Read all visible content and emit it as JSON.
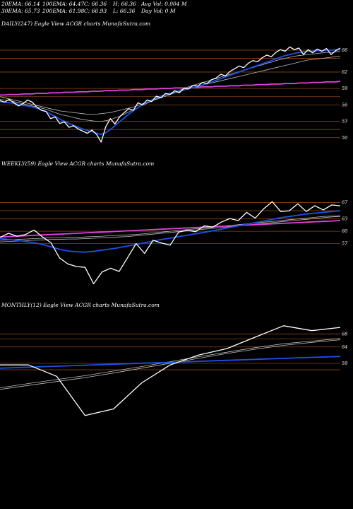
{
  "header": {
    "row1": [
      "20EMA: 66.14",
      "100EMA: 64.47",
      "C: 66.36",
      "H: 66.36",
      "Avg Vol: 0.004 M"
    ],
    "row2": [
      "30EMA: 65.73",
      "200EMA: 61.98",
      "C: 66.93",
      "L: 66.36",
      "Day Vol: 0  M"
    ]
  },
  "colors": {
    "background": "#000000",
    "price": "#ffffff",
    "ema_fast": "#1e50e6",
    "ema_slow": "#e040e0",
    "hline": "#8b4513"
  },
  "chart_data": [
    {
      "type": "line",
      "title": "DAILY(247) Eagle  View  ACGR charts MunafaSutra.com",
      "ytick_labels": [
        "66",
        "62",
        "59",
        "56",
        "53",
        "50"
      ],
      "ylim": [
        47,
        70
      ],
      "hlines": [
        66,
        64.5,
        62,
        59,
        57.5,
        56,
        53,
        51.5,
        50
      ],
      "series": [
        {
          "role": "price",
          "values": [
            56.8,
            56.5,
            57.0,
            56.4,
            55.8,
            56.2,
            56.9,
            56.5,
            55.6,
            55.0,
            54.8,
            53.5,
            53.8,
            52.6,
            52.9,
            51.9,
            52.2,
            51.6,
            51.2,
            50.8,
            51.4,
            50.6,
            49.2,
            52.0,
            53.5,
            52.5,
            53.8,
            54.6,
            55.3,
            55.0,
            56.4,
            56.0,
            56.9,
            56.6,
            57.6,
            57.3,
            58.1,
            57.9,
            58.6,
            58.2,
            59.0,
            58.9,
            59.6,
            59.4,
            60.1,
            59.9,
            60.6,
            60.9,
            61.6,
            61.3,
            62.1,
            62.6,
            63.1,
            62.8,
            63.6,
            64.1,
            63.9,
            64.6,
            65.1,
            64.8,
            65.6,
            66.1,
            65.8,
            66.6,
            66.1,
            66.4,
            65.2,
            66.1,
            65.5,
            66.2,
            65.8,
            66.3,
            65.2,
            65.9,
            66.4
          ]
        },
        {
          "role": "ema_fast",
          "values": [
            56.6,
            56.5,
            56.4,
            56.3,
            56.1,
            55.9,
            55.8,
            55.6,
            55.4,
            55.1,
            54.8,
            54.3,
            53.9,
            53.4,
            53.0,
            52.6,
            52.3,
            51.9,
            51.6,
            51.3,
            51.1,
            50.8,
            50.6,
            50.9,
            51.5,
            52.2,
            52.9,
            53.6,
            54.3,
            54.9,
            55.5,
            56.0,
            56.5,
            56.9,
            57.3,
            57.6,
            57.9,
            58.1,
            58.4,
            58.6,
            58.8,
            59.0,
            59.2,
            59.4,
            59.6,
            59.9,
            60.2,
            60.5,
            60.8,
            61.1,
            61.4,
            61.7,
            62.0,
            62.3,
            62.6,
            62.9,
            63.2,
            63.5,
            63.8,
            64.1,
            64.4,
            64.7,
            65.0,
            65.2,
            65.4,
            65.6,
            65.7,
            65.8,
            65.8,
            65.9,
            65.9,
            66.0,
            66.0,
            66.1,
            66.1
          ]
        },
        {
          "role": "ema_slow",
          "values": [
            57.8,
            57.8,
            57.9,
            57.9,
            57.9,
            58.0,
            58.0,
            58.0,
            58.1,
            58.1,
            58.1,
            58.2,
            58.2,
            58.2,
            58.3,
            58.3,
            58.3,
            58.4,
            58.4,
            58.4,
            58.5,
            58.5,
            58.5,
            58.6,
            58.6,
            58.6,
            58.7,
            58.7,
            58.7,
            58.8,
            58.8,
            58.8,
            58.9,
            58.9,
            58.9,
            59.0,
            59.0,
            59.0,
            59.1,
            59.1,
            59.1,
            59.2,
            59.2,
            59.2,
            59.3,
            59.3,
            59.3,
            59.4,
            59.4,
            59.4,
            59.5,
            59.5,
            59.5,
            59.6,
            59.6,
            59.6,
            59.7,
            59.7,
            59.7,
            59.8,
            59.8,
            59.8,
            59.9,
            59.9,
            59.9,
            60.0,
            60.0,
            60.0,
            60.1,
            60.1,
            60.1,
            60.2,
            60.2,
            60.2,
            60.3
          ]
        },
        {
          "role": "ema_mid1",
          "values": [
            57.5,
            57.3,
            57.1,
            56.9,
            56.7,
            56.5,
            56.3,
            56.1,
            55.9,
            55.7,
            55.5,
            55.3,
            55.1,
            54.9,
            54.8,
            54.7,
            54.6,
            54.5,
            54.4,
            54.3,
            54.3,
            54.3,
            54.4,
            54.5,
            54.6,
            54.8,
            55.0,
            55.2,
            55.4,
            55.6,
            55.9,
            56.2,
            56.5,
            56.8,
            57.0,
            57.3,
            57.6,
            57.9,
            58.2,
            58.4,
            58.7,
            58.9,
            59.2,
            59.4,
            59.6,
            59.8,
            60.0,
            60.2,
            60.4,
            60.6,
            60.8,
            61.0,
            61.2,
            61.4,
            61.6,
            61.8,
            62.0,
            62.2,
            62.4,
            62.6,
            62.8,
            63.0,
            63.2,
            63.4,
            63.6,
            63.8,
            64.0,
            64.2,
            64.3,
            64.4,
            64.5,
            64.6,
            64.7,
            64.8,
            64.9
          ]
        },
        {
          "role": "ema_mid2",
          "values": [
            57.0,
            56.9,
            56.8,
            56.6,
            56.4,
            56.2,
            56.0,
            55.8,
            55.6,
            55.4,
            55.2,
            54.9,
            54.6,
            54.3,
            54.1,
            53.9,
            53.7,
            53.5,
            53.3,
            53.2,
            53.1,
            53.0,
            53.0,
            53.1,
            53.3,
            53.6,
            53.9,
            54.3,
            54.7,
            55.1,
            55.5,
            55.9,
            56.3,
            56.7,
            57.1,
            57.5,
            57.8,
            58.1,
            58.4,
            58.7,
            59.0,
            59.3,
            59.6,
            59.8,
            60.1,
            60.3,
            60.6,
            60.8,
            61.1,
            61.3,
            61.6,
            61.8,
            62.1,
            62.3,
            62.6,
            62.8,
            63.1,
            63.3,
            63.6,
            63.8,
            64.1,
            64.3,
            64.5,
            64.7,
            64.9,
            65.0,
            65.1,
            65.2,
            65.3,
            65.4,
            65.5,
            65.6,
            65.6,
            65.7,
            65.8
          ]
        }
      ]
    },
    {
      "type": "line",
      "title": "WEEKLY(59) Eagle  View  ACGR charts MunafaSutra.com",
      "ytick_labels": [
        "67",
        "63",
        "60",
        "57"
      ],
      "ylim": [
        44,
        75
      ],
      "hlines": [
        67,
        65,
        63,
        60,
        57
      ],
      "series": [
        {
          "role": "price",
          "values": [
            58.5,
            59.5,
            58.8,
            59.2,
            60.3,
            58.6,
            57.2,
            53.5,
            52.0,
            51.4,
            51.2,
            47.2,
            50.1,
            51.0,
            50.2,
            53.6,
            57.0,
            54.6,
            57.8,
            57.1,
            56.6,
            59.8,
            60.2,
            59.9,
            61.3,
            61.0,
            62.2,
            63.1,
            62.6,
            64.6,
            63.2,
            65.5,
            67.2,
            64.8,
            65.0,
            66.7,
            64.8,
            66.2,
            65.2,
            66.4,
            66.2
          ]
        },
        {
          "role": "ema_fast",
          "values": [
            58.2,
            58.0,
            57.8,
            57.5,
            57.2,
            56.8,
            56.2,
            55.6,
            55.2,
            55.0,
            54.9,
            55.1,
            55.4,
            55.7,
            56.0,
            56.4,
            56.8,
            57.2,
            57.6,
            58.0,
            58.3,
            58.7,
            59.0,
            59.4,
            59.7,
            60.1,
            60.5,
            60.9,
            61.3,
            61.7,
            62.1,
            62.5,
            62.9,
            63.3,
            63.6,
            63.9,
            64.2,
            64.4,
            64.6,
            64.8,
            65.0
          ]
        },
        {
          "role": "ema_slow",
          "values": [
            58.6,
            58.7,
            58.8,
            58.9,
            59.0,
            59.1,
            59.2,
            59.3,
            59.4,
            59.5,
            59.6,
            59.7,
            59.8,
            59.9,
            60.0,
            60.1,
            60.2,
            60.3,
            60.4,
            60.5,
            60.6,
            60.7,
            60.8,
            60.9,
            61.0,
            61.1,
            61.2,
            61.3,
            61.4,
            61.5,
            61.6,
            61.7,
            61.8,
            61.9,
            62.0,
            62.1,
            62.2,
            62.3,
            62.4,
            62.5,
            62.6
          ]
        },
        {
          "role": "ema_mid1",
          "values": [
            57.8,
            57.9,
            58.0,
            58.1,
            58.2,
            58.3,
            58.4,
            58.4,
            58.5,
            58.5,
            58.6,
            58.7,
            58.8,
            58.9,
            59.0,
            59.1,
            59.2,
            59.4,
            59.6,
            59.8,
            60.0,
            60.2,
            60.4,
            60.6,
            60.8,
            61.0,
            61.2,
            61.4,
            61.6,
            61.8,
            62.0,
            62.2,
            62.4,
            62.6,
            62.8,
            63.0,
            63.2,
            63.4,
            63.6,
            63.7,
            63.8
          ]
        },
        {
          "role": "ema_mid2",
          "values": [
            57.4,
            57.5,
            57.6,
            57.7,
            57.8,
            57.9,
            58.0,
            58.0,
            58.1,
            58.1,
            58.2,
            58.3,
            58.4,
            58.5,
            58.6,
            58.7,
            58.9,
            59.1,
            59.3,
            59.5,
            59.7,
            59.9,
            60.1,
            60.3,
            60.5,
            60.7,
            60.9,
            61.1,
            61.3,
            61.5,
            61.7,
            61.9,
            62.1,
            62.3,
            62.5,
            62.7,
            62.9,
            63.1,
            63.3,
            63.5,
            63.6
          ]
        }
      ]
    },
    {
      "type": "line",
      "title": "MONTHLY(12) Eagle  View  ACGR charts MunafaSutra.com",
      "ytick_labels": [
        "68",
        "64",
        "59"
      ],
      "ylim": [
        36,
        75
      ],
      "hlines": [
        68,
        66.5,
        64,
        59,
        57
      ],
      "series": [
        {
          "role": "price",
          "values": [
            58.5,
            58.5,
            55.0,
            43.0,
            45.0,
            53.0,
            58.5,
            61.5,
            63.5,
            67.0,
            70.5,
            69.0,
            70.0
          ]
        },
        {
          "role": "ema_fast",
          "values": [
            57.5,
            57.8,
            58.1,
            58.4,
            58.7,
            59.0,
            59.3,
            59.6,
            59.9,
            60.2,
            60.5,
            60.8,
            61.1
          ]
        },
        {
          "role": "ema_mid1",
          "values": [
            51.5,
            52.8,
            54.0,
            55.2,
            56.6,
            58.0,
            59.5,
            61.0,
            62.4,
            63.8,
            65.0,
            65.8,
            66.6
          ]
        },
        {
          "role": "ema_mid2",
          "values": [
            51.0,
            52.2,
            53.4,
            54.6,
            56.0,
            57.5,
            59.0,
            60.5,
            62.0,
            63.3,
            64.5,
            65.4,
            66.2
          ]
        }
      ]
    }
  ]
}
